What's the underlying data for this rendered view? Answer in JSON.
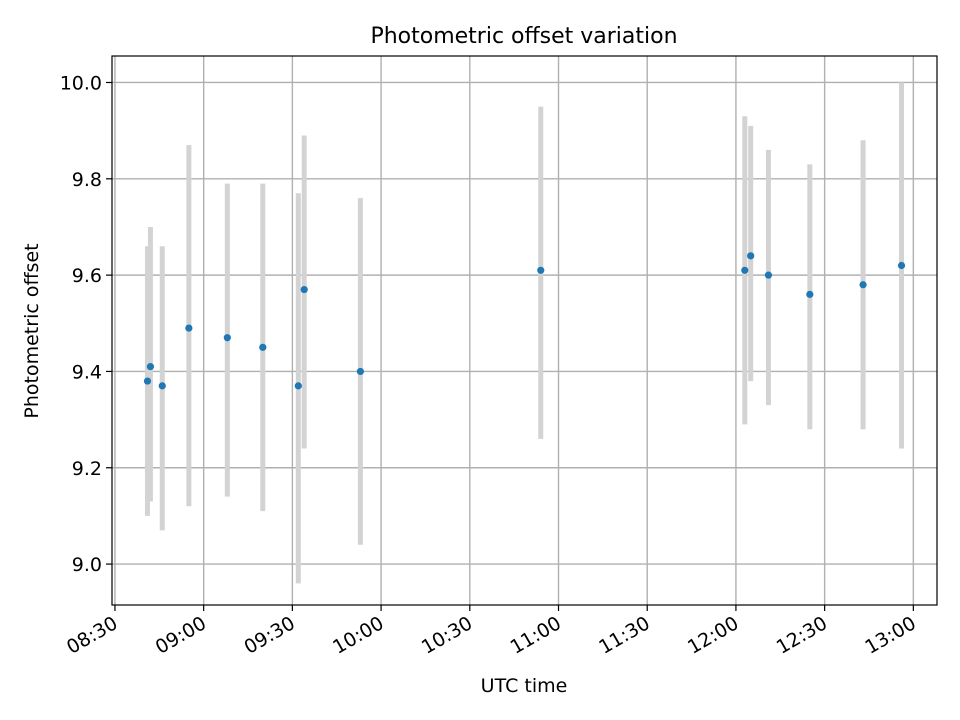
{
  "chart_data": {
    "type": "scatter",
    "title": "Photometric offset variation",
    "xlabel": "UTC time",
    "ylabel": "Photometric offset",
    "x_ticks": [
      "08:30",
      "09:00",
      "09:30",
      "10:00",
      "10:30",
      "11:00",
      "11:30",
      "12:00",
      "12:30",
      "13:00"
    ],
    "y_ticks": [
      "9.0",
      "9.2",
      "9.4",
      "9.6",
      "9.8",
      "10.0"
    ],
    "xlim": [
      "08:29",
      "13:08"
    ],
    "ylim": [
      8.915,
      10.055
    ],
    "grid": true,
    "marker_color": "#1f77b4",
    "errorbar_color": "#d3d3d3",
    "points": [
      {
        "x": "08:41",
        "y": 9.38,
        "ymin": 9.1,
        "ymax": 9.66
      },
      {
        "x": "08:42",
        "y": 9.41,
        "ymin": 9.13,
        "ymax": 9.7
      },
      {
        "x": "08:46",
        "y": 9.37,
        "ymin": 9.07,
        "ymax": 9.66
      },
      {
        "x": "08:55",
        "y": 9.49,
        "ymin": 9.12,
        "ymax": 9.87
      },
      {
        "x": "09:08",
        "y": 9.47,
        "ymin": 9.14,
        "ymax": 9.79
      },
      {
        "x": "09:20",
        "y": 9.45,
        "ymin": 9.11,
        "ymax": 9.79
      },
      {
        "x": "09:32",
        "y": 9.37,
        "ymin": 8.96,
        "ymax": 9.77
      },
      {
        "x": "09:34",
        "y": 9.57,
        "ymin": 9.24,
        "ymax": 9.89
      },
      {
        "x": "09:53",
        "y": 9.4,
        "ymin": 9.04,
        "ymax": 9.76
      },
      {
        "x": "10:54",
        "y": 9.61,
        "ymin": 9.26,
        "ymax": 9.95
      },
      {
        "x": "12:03",
        "y": 9.61,
        "ymin": 9.29,
        "ymax": 9.93
      },
      {
        "x": "12:05",
        "y": 9.64,
        "ymin": 9.38,
        "ymax": 9.91
      },
      {
        "x": "12:11",
        "y": 9.6,
        "ymin": 9.33,
        "ymax": 9.86
      },
      {
        "x": "12:25",
        "y": 9.56,
        "ymin": 9.28,
        "ymax": 9.83
      },
      {
        "x": "12:43",
        "y": 9.58,
        "ymin": 9.28,
        "ymax": 9.88
      },
      {
        "x": "12:56",
        "y": 9.62,
        "ymin": 9.24,
        "ymax": 10.0
      }
    ]
  }
}
